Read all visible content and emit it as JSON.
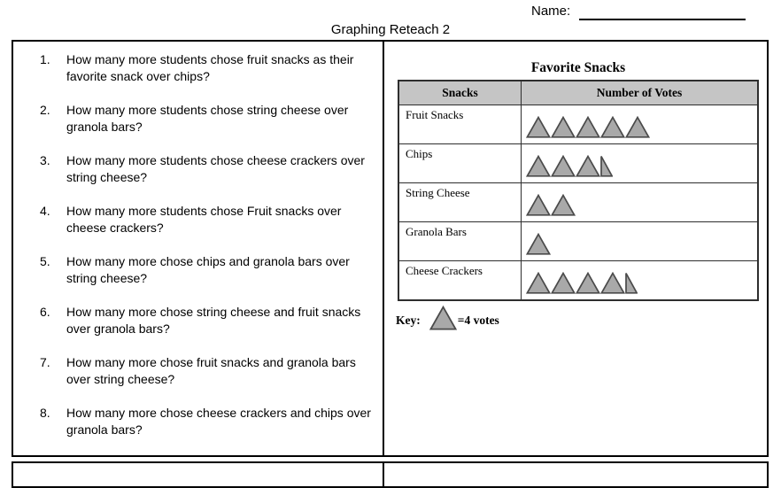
{
  "header": {
    "name_label": "Name:",
    "title": "Graphing Reteach 2"
  },
  "questions": [
    {
      "num": "1.",
      "text": "How many more students chose fruit snacks as their favorite snack over chips?"
    },
    {
      "num": "2.",
      "text": "How many more students chose string cheese over granola bars?"
    },
    {
      "num": "3.",
      "text": "How many more students chose cheese crackers over string cheese?"
    },
    {
      "num": "4.",
      "text": "How many more students chose Fruit snacks over cheese crackers?"
    },
    {
      "num": "5.",
      "text": "How many more chose chips and granola bars over string cheese?"
    },
    {
      "num": "6.",
      "text": "How many more chose string cheese and fruit snacks over granola bars?"
    },
    {
      "num": "7.",
      "text": "How many more chose fruit snacks and granola bars over string cheese?"
    },
    {
      "num": "8.",
      "text": "How many more chose cheese crackers and chips over granola bars?"
    }
  ],
  "chart_data": {
    "type": "pictograph",
    "title": "Favorite Snacks",
    "columns": [
      "Snacks",
      "Number of Votes"
    ],
    "symbol": "triangle",
    "symbol_value_votes": 4,
    "key_label": "Key:",
    "key_value_label": "=4 votes",
    "rows": [
      {
        "label": "Fruit Snacks",
        "symbols": 5,
        "votes": 20
      },
      {
        "label": "Chips",
        "symbols": 3.5,
        "votes": 14
      },
      {
        "label": "String Cheese",
        "symbols": 2,
        "votes": 8
      },
      {
        "label": "Granola Bars",
        "symbols": 1,
        "votes": 4
      },
      {
        "label": "Cheese Crackers",
        "symbols": 4.5,
        "votes": 18
      }
    ],
    "colors": {
      "symbol_fill": "#a9a9a9",
      "symbol_stroke": "#4a4a4a",
      "header_bg": "#c5c5c5",
      "table_border": "#2e2e2e"
    }
  }
}
